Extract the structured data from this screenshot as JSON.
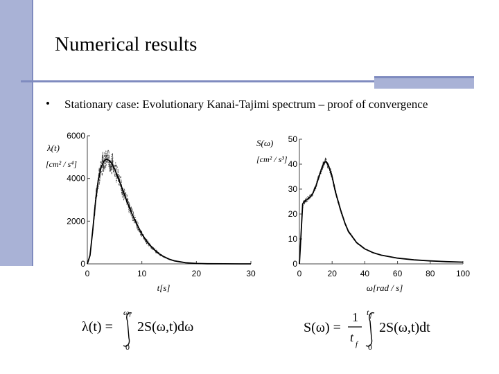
{
  "slide": {
    "title": "Numerical results",
    "bullet": "Stationary case: Evolutionary Kanai-Tajimi spectrum – proof of convergence"
  },
  "chart_data": [
    {
      "type": "line",
      "title": "",
      "ylabel_symbol": "λ(t)",
      "ylabel_unit": "[cm² / s⁴]",
      "xlabel": "t[s]",
      "xlim": [
        0,
        30
      ],
      "ylim": [
        0,
        6000
      ],
      "xticks": [
        0,
        10,
        20,
        30
      ],
      "yticks": [
        0,
        2000,
        4000,
        6000
      ],
      "grid": false,
      "series": [
        {
          "x": [
            0,
            0.5,
            1,
            1.5,
            2,
            2.5,
            3,
            3.5,
            4,
            4.5,
            5,
            6,
            7,
            8,
            9,
            10,
            11,
            12,
            13,
            14,
            15,
            16,
            18,
            20,
            22,
            25,
            28,
            30
          ],
          "values": [
            0,
            400,
            1600,
            2900,
            3900,
            4500,
            4800,
            4900,
            4850,
            4700,
            4450,
            3800,
            3100,
            2450,
            1900,
            1400,
            1020,
            730,
            500,
            340,
            220,
            140,
            55,
            20,
            8,
            3,
            1,
            0
          ]
        }
      ]
    },
    {
      "type": "line",
      "title": "",
      "ylabel_symbol": "S(ω)",
      "ylabel_unit": "[cm² / s³]",
      "xlabel": "ω[rad / s]",
      "xlim": [
        0,
        100
      ],
      "ylim": [
        0,
        50
      ],
      "xticks": [
        0,
        20,
        40,
        60,
        80,
        100
      ],
      "yticks": [
        0,
        10,
        20,
        30,
        40,
        50
      ],
      "grid": false,
      "series": [
        {
          "x": [
            0,
            1,
            2,
            3,
            4,
            6,
            8,
            10,
            12,
            14,
            15,
            16,
            17,
            18,
            20,
            22,
            25,
            28,
            30,
            35,
            40,
            45,
            50,
            60,
            70,
            80,
            90,
            100
          ],
          "values": [
            0,
            12,
            24,
            25,
            25.5,
            26.5,
            28,
            31,
            35,
            39,
            40.5,
            41,
            40.5,
            39,
            35,
            29,
            22,
            16,
            13,
            8.5,
            6,
            4.5,
            3.5,
            2.3,
            1.6,
            1.2,
            0.9,
            0.7
          ]
        }
      ]
    }
  ],
  "formulas": {
    "f1": {
      "lhs": "λ(t) =",
      "upper": "ωᵧ",
      "lower": "0",
      "integrand": "2S(ω,t)dω"
    },
    "f2": {
      "lhs": "S(ω) =",
      "num": "1",
      "den": "t",
      "den_sub": "f",
      "upper": "t",
      "upper_sub": "f",
      "lower": "0",
      "integrand": "2S(ω,t)dt"
    }
  }
}
